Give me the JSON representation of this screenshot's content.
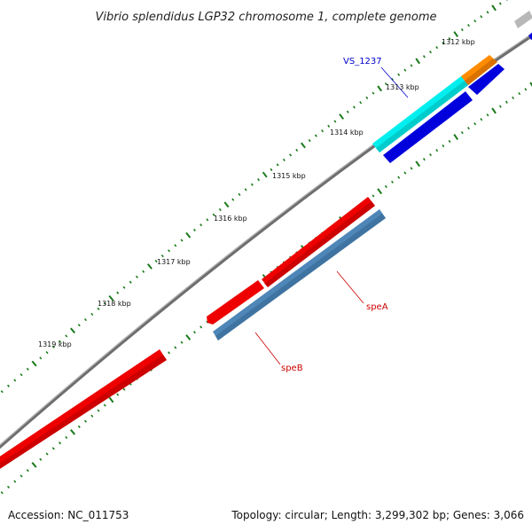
{
  "title": "Vibrio splendidus LGP32 chromosome 1, complete genome",
  "footer": {
    "accession": "Accession: NC_011753",
    "summary": "Topology: circular; Length: 3,299,302 bp; Genes: 3,066"
  },
  "scale_labels": [
    "1312 kbp",
    "1313 kbp",
    "1314 kbp",
    "1315 kbp",
    "1316 kbp",
    "1317 kbp",
    "1318 kbp",
    "1319 kbp"
  ],
  "gene_labels": {
    "vs1237": "VS_1237",
    "speA": "speA",
    "speB": "speB"
  },
  "colors": {
    "backbone": "#888888",
    "ticks": "#1a7a1a",
    "red": "#ff0000",
    "cyan": "#00ffff",
    "orange": "#ff8c00",
    "blue": "#0000dd",
    "steelblue": "#4f86b8",
    "vs_label": "#0000cc",
    "spe_label": "#cc0000"
  }
}
